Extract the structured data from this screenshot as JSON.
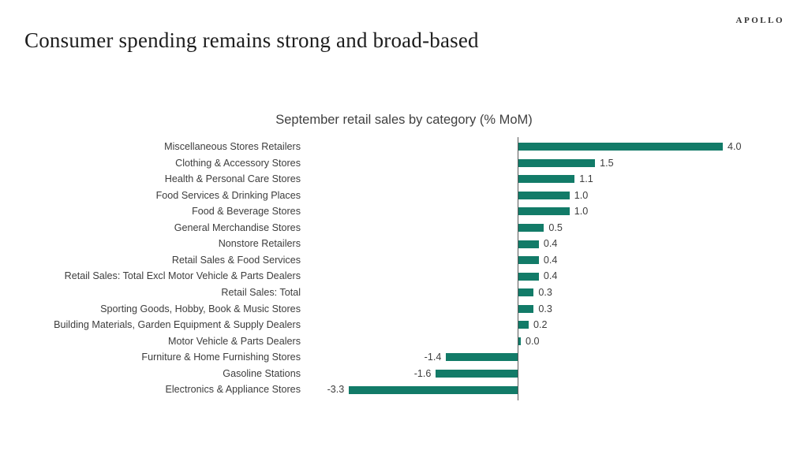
{
  "header": {
    "logo": "APOLLO",
    "title": "Consumer spending remains strong and broad-based"
  },
  "chart_data": {
    "type": "bar",
    "orientation": "horizontal",
    "title": "September retail sales by category (% MoM)",
    "categories": [
      "Miscellaneous Stores Retailers",
      "Clothing & Accessory Stores",
      "Health & Personal Care Stores",
      "Food Services & Drinking Places",
      "Food & Beverage Stores",
      "General Merchandise Stores",
      "Nonstore Retailers",
      "Retail Sales & Food Services",
      "Retail Sales: Total Excl Motor Vehicle & Parts Dealers",
      "Retail Sales: Total",
      "Sporting Goods, Hobby, Book & Music Stores",
      "Building Materials, Garden Equipment & Supply Dealers",
      "Motor Vehicle & Parts Dealers",
      "Furniture & Home Furnishing Stores",
      "Gasoline Stations",
      "Electronics & Appliance Stores"
    ],
    "values": [
      4.0,
      1.5,
      1.1,
      1.0,
      1.0,
      0.5,
      0.4,
      0.4,
      0.4,
      0.3,
      0.3,
      0.2,
      0.0,
      -1.4,
      -1.6,
      -3.3
    ],
    "value_labels": [
      "4.0",
      "1.5",
      "1.1",
      "1.0",
      "1.0",
      "0.5",
      "0.4",
      "0.4",
      "0.4",
      "0.3",
      "0.3",
      "0.2",
      "0.0",
      "-1.4",
      "-1.6",
      "-3.3"
    ],
    "xlabel": "",
    "ylabel": "",
    "xlim": [
      -4.2,
      5.7
    ],
    "grid": false,
    "legend": false,
    "bar_color": "#127b68",
    "axis_color": "#595959",
    "label_color": "#3d3d3d",
    "title_color": "#404040"
  }
}
